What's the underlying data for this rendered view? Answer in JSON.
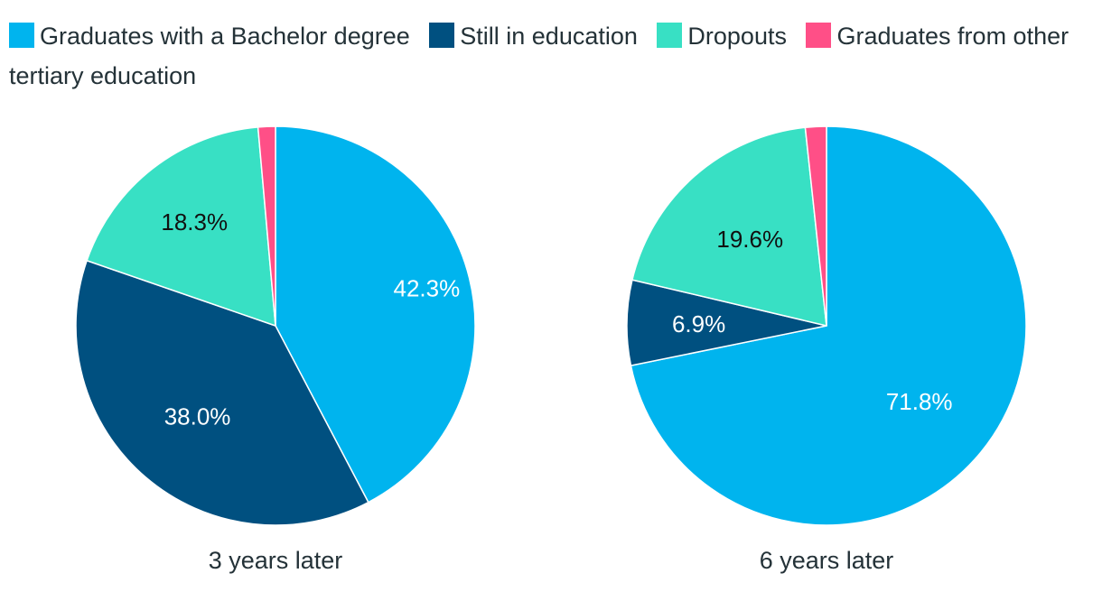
{
  "legend": {
    "items": [
      {
        "label": "Graduates with a Bachelor degree",
        "color": "#00b4ee"
      },
      {
        "label": "Still in education",
        "color": "#005080"
      },
      {
        "label": "Dropouts",
        "color": "#38e0c4"
      },
      {
        "label": "Graduates from other tertiary education",
        "color": "#ff4f87"
      }
    ]
  },
  "chart_data": [
    {
      "type": "pie",
      "title": "3 years later",
      "slices": [
        {
          "name": "Graduates with a Bachelor degree",
          "value": 42.3,
          "label": "42.3%",
          "color": "#00b4ee"
        },
        {
          "name": "Still in education",
          "value": 38.0,
          "label": "38.0%",
          "color": "#005080"
        },
        {
          "name": "Dropouts",
          "value": 18.3,
          "label": "18.3%",
          "color": "#38e0c4"
        },
        {
          "name": "Graduates from other tertiary education",
          "value": 1.4,
          "label": "",
          "color": "#ff4f87"
        }
      ]
    },
    {
      "type": "pie",
      "title": "6 years later",
      "slices": [
        {
          "name": "Graduates with a Bachelor degree",
          "value": 71.8,
          "label": "71.8%",
          "color": "#00b4ee"
        },
        {
          "name": "Still in education",
          "value": 6.9,
          "label": "6.9%",
          "color": "#005080"
        },
        {
          "name": "Dropouts",
          "value": 19.6,
          "label": "19.6%",
          "color": "#38e0c4"
        },
        {
          "name": "Graduates from other tertiary education",
          "value": 1.7,
          "label": "",
          "color": "#ff4f87"
        }
      ]
    }
  ]
}
